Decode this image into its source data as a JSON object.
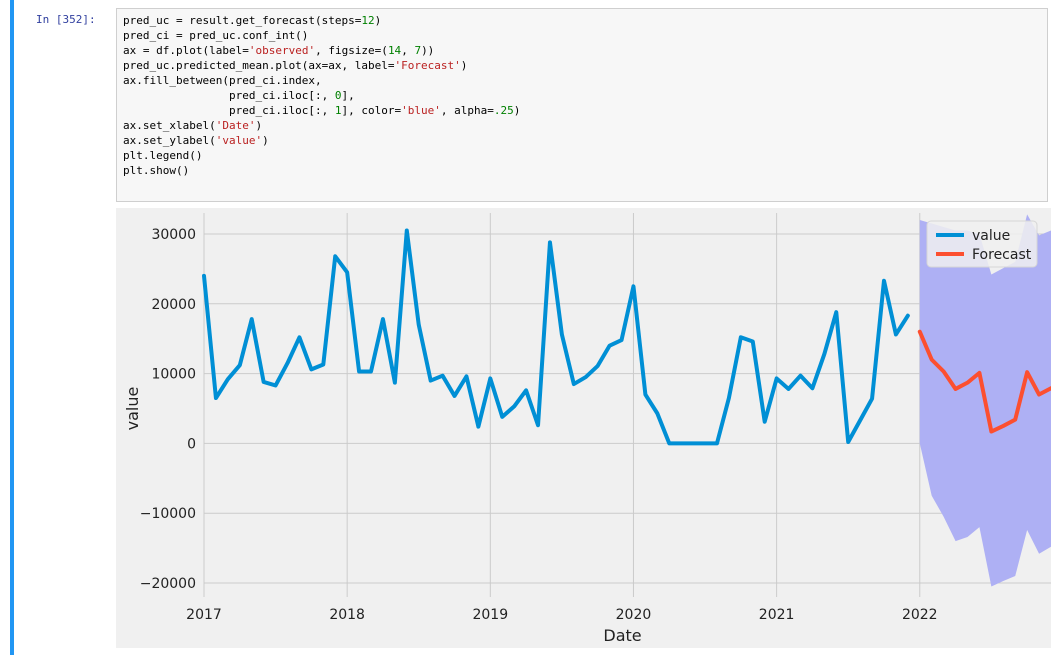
{
  "cell": {
    "prompt": "In [352]:",
    "code_lines": [
      [
        {
          "t": "pred_uc = result.get_forecast(steps=",
          "c": ""
        },
        {
          "t": "12",
          "c": "n"
        },
        {
          "t": ")",
          "c": ""
        }
      ],
      [
        {
          "t": "pred_ci = pred_uc.conf_int()",
          "c": ""
        }
      ],
      [
        {
          "t": "ax = df.plot(label=",
          "c": ""
        },
        {
          "t": "'observed'",
          "c": "s"
        },
        {
          "t": ", figsize=(",
          "c": ""
        },
        {
          "t": "14",
          "c": "n"
        },
        {
          "t": ", ",
          "c": ""
        },
        {
          "t": "7",
          "c": "n"
        },
        {
          "t": "))",
          "c": ""
        }
      ],
      [
        {
          "t": "pred_uc.predicted_mean.plot(ax=ax, label=",
          "c": ""
        },
        {
          "t": "'Forecast'",
          "c": "s"
        },
        {
          "t": ")",
          "c": ""
        }
      ],
      [
        {
          "t": "ax.fill_between(pred_ci.index,",
          "c": ""
        }
      ],
      [
        {
          "t": "                pred_ci.iloc[:, ",
          "c": ""
        },
        {
          "t": "0",
          "c": "n"
        },
        {
          "t": "],",
          "c": ""
        }
      ],
      [
        {
          "t": "                pred_ci.iloc[:, ",
          "c": ""
        },
        {
          "t": "1",
          "c": "n"
        },
        {
          "t": "], color=",
          "c": ""
        },
        {
          "t": "'blue'",
          "c": "s"
        },
        {
          "t": ", alpha=",
          "c": ""
        },
        {
          "t": ".25",
          "c": "n"
        },
        {
          "t": ")",
          "c": ""
        }
      ],
      [
        {
          "t": "ax.set_xlabel(",
          "c": ""
        },
        {
          "t": "'Date'",
          "c": "s"
        },
        {
          "t": ")",
          "c": ""
        }
      ],
      [
        {
          "t": "ax.set_ylabel(",
          "c": ""
        },
        {
          "t": "'value'",
          "c": "s"
        },
        {
          "t": ")",
          "c": ""
        }
      ],
      [
        {
          "t": "plt.legend()",
          "c": ""
        }
      ],
      [
        {
          "t": "plt.show()",
          "c": ""
        }
      ]
    ]
  },
  "colors": {
    "value": "#008fd5",
    "forecast": "#fc4f30",
    "ci_fill": "#aeb0f4",
    "plot_bg": "#f0f0f0",
    "grid": "#cbcbcb",
    "cell_bar": "#2196f3"
  },
  "chart_data": {
    "type": "line",
    "xlabel": "Date",
    "ylabel": "value",
    "xlim": [
      "2017-01",
      "2022-12"
    ],
    "ylim": [
      -22000,
      33000
    ],
    "x_ticks": [
      "2017",
      "2018",
      "2019",
      "2020",
      "2021",
      "2022"
    ],
    "y_ticks": [
      -20000,
      -10000,
      0,
      10000,
      20000,
      30000
    ],
    "y_tick_labels": [
      "−20000",
      "−10000",
      "0",
      "10000",
      "20000",
      "30000"
    ],
    "grid": true,
    "legend": {
      "position": "top-right",
      "entries": [
        "value",
        "Forecast"
      ]
    },
    "series": [
      {
        "name": "value",
        "x": [
          "2017-01",
          "2017-02",
          "2017-03",
          "2017-04",
          "2017-05",
          "2017-06",
          "2017-07",
          "2017-08",
          "2017-09",
          "2017-10",
          "2017-11",
          "2017-12",
          "2018-01",
          "2018-02",
          "2018-03",
          "2018-04",
          "2018-05",
          "2018-06",
          "2018-07",
          "2018-08",
          "2018-09",
          "2018-10",
          "2018-11",
          "2018-12",
          "2019-01",
          "2019-02",
          "2019-03",
          "2019-04",
          "2019-05",
          "2019-06",
          "2019-07",
          "2019-08",
          "2019-09",
          "2019-10",
          "2019-11",
          "2019-12",
          "2020-01",
          "2020-02",
          "2020-03",
          "2020-04",
          "2020-05",
          "2020-06",
          "2020-07",
          "2020-08",
          "2020-09",
          "2020-10",
          "2020-11",
          "2020-12",
          "2021-01",
          "2021-02",
          "2021-03",
          "2021-04",
          "2021-05",
          "2021-06",
          "2021-07",
          "2021-08",
          "2021-09",
          "2021-10",
          "2021-11",
          "2021-12"
        ],
        "values": [
          24000,
          6500,
          9200,
          11200,
          17800,
          8800,
          8300,
          11500,
          15200,
          10600,
          11300,
          26800,
          24500,
          10300,
          10300,
          17800,
          8700,
          30500,
          17000,
          9000,
          9700,
          6800,
          9600,
          2400,
          9300,
          3800,
          5300,
          7600,
          2600,
          28800,
          15600,
          8500,
          9500,
          11100,
          14000,
          14800,
          22500,
          7000,
          4300,
          0,
          0,
          0,
          0,
          0,
          6500,
          15200,
          14600,
          3100,
          9300,
          7800,
          9700,
          7900,
          12800,
          18800,
          200,
          3300,
          6400,
          23300,
          15600,
          18300
        ]
      },
      {
        "name": "Forecast",
        "x": [
          "2022-01",
          "2022-02",
          "2022-03",
          "2022-04",
          "2022-05",
          "2022-06",
          "2022-07",
          "2022-08",
          "2022-09",
          "2022-10",
          "2022-11",
          "2022-12"
        ],
        "values": [
          16000,
          12000,
          10300,
          7800,
          8700,
          10100,
          1700,
          2500,
          3400,
          10200,
          7000,
          7900
        ],
        "ci_lower": [
          0,
          -7500,
          -10500,
          -14000,
          -13400,
          -12000,
          -20500,
          -19700,
          -19000,
          -12400,
          -15800,
          -14800
        ],
        "ci_upper": [
          32000,
          31500,
          31000,
          30500,
          30500,
          30000,
          24200,
          25100,
          26000,
          32800,
          29800,
          30500
        ]
      }
    ]
  }
}
